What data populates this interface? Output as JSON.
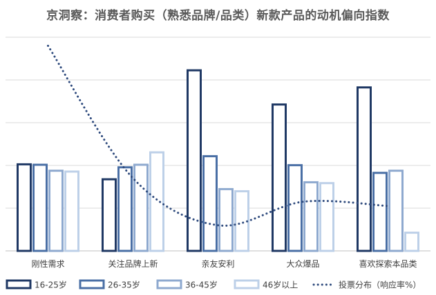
{
  "chart_data": {
    "type": "bar",
    "title": "京洞察：消费者购买（熟悉品牌/品类）新款产品的动机偏向指数",
    "xlabel": "",
    "ylabel": "",
    "ylim": [
      0,
      5
    ],
    "grid": true,
    "legend_position": "bottom",
    "categories": [
      "刚性需求",
      "关注品牌上新",
      "亲友安利",
      "大众爆品",
      "喜欢探索本品类"
    ],
    "series": [
      {
        "name": "16-25岁",
        "color": "#1f3864",
        "values": [
          2.05,
          1.7,
          4.25,
          3.45,
          3.85
        ]
      },
      {
        "name": "26-35岁",
        "color": "#4a6fa5",
        "values": [
          2.04,
          1.98,
          2.24,
          2.03,
          1.85
        ]
      },
      {
        "name": "36-45岁",
        "color": "#8ea9cf",
        "values": [
          1.9,
          2.04,
          1.47,
          1.63,
          1.9
        ]
      },
      {
        "name": "46岁以上",
        "color": "#bdd0e8",
        "values": [
          1.88,
          2.33,
          1.42,
          1.61,
          0.45
        ]
      }
    ],
    "line": {
      "name": "投票分布（响应率%）",
      "color": "#2e4a7d",
      "style": "dotted",
      "values": [
        4.8,
        1.7,
        0.6,
        1.15,
        1.05
      ]
    }
  }
}
